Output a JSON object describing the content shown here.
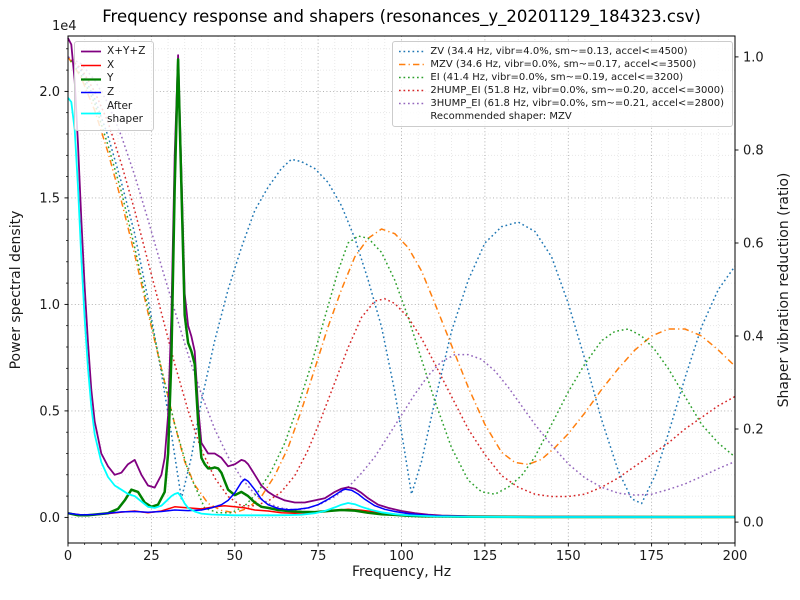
{
  "chart_data": {
    "type": "line",
    "title": "Frequency response and shapers (resonances_y_20201129_184323.csv)",
    "xlabel": "Frequency, Hz",
    "ylabel_left": "Power spectral density",
    "ylabel_right": "Shaper vibration reduction (ratio)",
    "offset_text": "1e4",
    "xlim": [
      0,
      200
    ],
    "ylim_left": [
      -0.12,
      2.26
    ],
    "ylim_right": [
      -0.045,
      1.045
    ],
    "x_ticks": [
      0,
      25,
      50,
      75,
      100,
      125,
      150,
      175,
      200
    ],
    "y_ticks_left": [
      0.0,
      0.5,
      1.0,
      1.5,
      2.0
    ],
    "y_ticks_right": [
      0.0,
      0.2,
      0.4,
      0.6,
      0.8,
      1.0
    ],
    "x_minor_step": 5,
    "y_left_minor_step": 0.1,
    "grid": {
      "major": true,
      "minor": true
    },
    "legend_left_position": "upper-left",
    "legend_right_position": "upper-right",
    "recommended": "Recommended shaper: MZV",
    "psd_units_multiplier": 10000,
    "psd_series": [
      {
        "name": "xyz",
        "label": "X+Y+Z",
        "color": "#800080",
        "dash": "solid",
        "width": 1.8,
        "x": [
          0,
          1,
          2,
          3,
          4,
          5,
          6,
          7,
          8,
          10,
          12,
          14,
          16,
          18,
          20,
          22,
          24,
          26,
          28,
          29,
          30,
          31,
          32,
          33,
          34,
          35,
          36,
          37,
          38,
          39,
          40,
          42,
          44,
          46,
          48,
          50,
          51,
          52,
          53,
          54,
          56,
          58,
          60,
          62,
          65,
          68,
          71,
          74,
          77,
          80,
          82,
          84,
          86,
          88,
          90,
          93,
          96,
          100,
          104,
          108,
          112,
          120,
          140,
          170,
          200
        ],
        "y": [
          2.25,
          2.22,
          2.05,
          1.75,
          1.4,
          1.08,
          0.82,
          0.6,
          0.45,
          0.3,
          0.24,
          0.2,
          0.21,
          0.25,
          0.27,
          0.2,
          0.15,
          0.14,
          0.2,
          0.28,
          0.48,
          0.95,
          1.7,
          2.17,
          1.62,
          1.05,
          0.9,
          0.85,
          0.78,
          0.52,
          0.35,
          0.3,
          0.3,
          0.28,
          0.24,
          0.25,
          0.26,
          0.27,
          0.265,
          0.25,
          0.2,
          0.15,
          0.12,
          0.1,
          0.08,
          0.07,
          0.07,
          0.08,
          0.09,
          0.12,
          0.135,
          0.142,
          0.135,
          0.115,
          0.09,
          0.06,
          0.045,
          0.03,
          0.02,
          0.013,
          0.009,
          0.006,
          0.004,
          0.003,
          0.002
        ]
      },
      {
        "name": "x",
        "label": "X",
        "color": "#ff0000",
        "dash": "solid",
        "width": 1.5,
        "x": [
          0,
          4,
          8,
          12,
          16,
          20,
          24,
          28,
          32,
          36,
          40,
          44,
          47,
          50,
          53,
          56,
          60,
          64,
          68,
          72,
          76,
          80,
          84,
          88,
          92,
          96,
          100,
          105,
          110,
          120,
          140,
          170,
          200
        ],
        "y": [
          0.02,
          0.012,
          0.012,
          0.018,
          0.025,
          0.03,
          0.022,
          0.03,
          0.05,
          0.045,
          0.04,
          0.05,
          0.055,
          0.05,
          0.045,
          0.035,
          0.03,
          0.022,
          0.02,
          0.022,
          0.026,
          0.032,
          0.038,
          0.034,
          0.026,
          0.018,
          0.013,
          0.009,
          0.006,
          0.004,
          0.003,
          0.002,
          0.002
        ]
      },
      {
        "name": "y",
        "label": "Y",
        "color": "#008000",
        "dash": "solid",
        "width": 2.5,
        "x": [
          0,
          3,
          6,
          9,
          12,
          15,
          17,
          19,
          21,
          23,
          25,
          27,
          29,
          30,
          31,
          32,
          33,
          34,
          35,
          36,
          37,
          38,
          39,
          40,
          41,
          42,
          43,
          44,
          45,
          46,
          47,
          48,
          50,
          52,
          54,
          56,
          58,
          60,
          63,
          66,
          70,
          74,
          78,
          82,
          86,
          90,
          94,
          98,
          102,
          106,
          110,
          120,
          140,
          170,
          200
        ],
        "y": [
          0.02,
          0.01,
          0.01,
          0.015,
          0.02,
          0.04,
          0.08,
          0.13,
          0.12,
          0.07,
          0.05,
          0.06,
          0.12,
          0.3,
          0.75,
          1.55,
          2.15,
          1.55,
          0.95,
          0.82,
          0.78,
          0.72,
          0.45,
          0.28,
          0.25,
          0.23,
          0.23,
          0.235,
          0.23,
          0.21,
          0.17,
          0.13,
          0.105,
          0.12,
          0.1,
          0.07,
          0.05,
          0.045,
          0.035,
          0.03,
          0.026,
          0.025,
          0.03,
          0.035,
          0.032,
          0.022,
          0.015,
          0.012,
          0.008,
          0.006,
          0.005,
          0.003,
          0.002,
          0.002,
          0.002
        ]
      },
      {
        "name": "z",
        "label": "Z",
        "color": "#0000ff",
        "dash": "solid",
        "width": 1.5,
        "x": [
          0,
          4,
          8,
          12,
          16,
          20,
          24,
          28,
          32,
          36,
          40,
          43,
          46,
          48,
          50,
          52,
          53,
          54,
          56,
          58,
          60,
          63,
          66,
          69,
          72,
          75,
          78,
          80,
          82,
          83,
          85,
          87,
          89,
          92,
          95,
          98,
          102,
          106,
          110,
          120,
          140,
          170,
          200
        ],
        "y": [
          0.02,
          0.012,
          0.014,
          0.02,
          0.026,
          0.028,
          0.024,
          0.028,
          0.035,
          0.032,
          0.035,
          0.045,
          0.06,
          0.08,
          0.115,
          0.165,
          0.18,
          0.17,
          0.13,
          0.085,
          0.06,
          0.042,
          0.036,
          0.038,
          0.045,
          0.06,
          0.085,
          0.105,
          0.125,
          0.133,
          0.128,
          0.11,
          0.085,
          0.055,
          0.038,
          0.028,
          0.018,
          0.012,
          0.008,
          0.004,
          0.003,
          0.002,
          0.002
        ]
      },
      {
        "name": "after_shaper",
        "label": "After\nshaper",
        "color": "#00ffff",
        "dash": "solid",
        "width": 1.8,
        "x": [
          0,
          1,
          2,
          3,
          4,
          5,
          6,
          7,
          8,
          10,
          12,
          14,
          16,
          18,
          20,
          22,
          24,
          26,
          28,
          30,
          31,
          32,
          33,
          34,
          35,
          36,
          38,
          40,
          43,
          46,
          50,
          54,
          58,
          62,
          66,
          70,
          74,
          77,
          80,
          82,
          84,
          86,
          88,
          91,
          94,
          98,
          102,
          106,
          110,
          120,
          140,
          170,
          200
        ],
        "y": [
          1.97,
          1.95,
          1.82,
          1.55,
          1.22,
          0.93,
          0.7,
          0.52,
          0.39,
          0.26,
          0.19,
          0.15,
          0.13,
          0.11,
          0.1,
          0.075,
          0.05,
          0.045,
          0.055,
          0.085,
          0.1,
          0.11,
          0.115,
          0.095,
          0.065,
          0.045,
          0.028,
          0.018,
          0.014,
          0.012,
          0.01,
          0.01,
          0.01,
          0.01,
          0.011,
          0.013,
          0.02,
          0.03,
          0.047,
          0.06,
          0.068,
          0.062,
          0.05,
          0.035,
          0.024,
          0.015,
          0.01,
          0.007,
          0.005,
          0.003,
          0.002,
          0.002,
          0.002
        ]
      }
    ],
    "shaper_series": [
      {
        "name": "zv",
        "label": "ZV (34.4 Hz, vibr=4.0%, sm~=0.13, accel<=4500)",
        "color": "#1f77b4",
        "dash": "dotted",
        "x": [
          0,
          4,
          8,
          12,
          16,
          20,
          24,
          28,
          31,
          34,
          37,
          40,
          44,
          48,
          52,
          56,
          60,
          64,
          67,
          70,
          74,
          78,
          82,
          86,
          90,
          94,
          98,
          101,
          103,
          106,
          110,
          115,
          120,
          125,
          130,
          135,
          140,
          145,
          150,
          155,
          160,
          165,
          169,
          172,
          176,
          180,
          185,
          190,
          195,
          200
        ],
        "y": [
          1.0,
          0.97,
          0.91,
          0.83,
          0.73,
          0.62,
          0.48,
          0.32,
          0.19,
          0.05,
          0.14,
          0.26,
          0.39,
          0.5,
          0.59,
          0.67,
          0.72,
          0.76,
          0.78,
          0.775,
          0.76,
          0.73,
          0.68,
          0.61,
          0.52,
          0.42,
          0.28,
          0.15,
          0.06,
          0.13,
          0.26,
          0.41,
          0.52,
          0.6,
          0.635,
          0.645,
          0.625,
          0.57,
          0.47,
          0.35,
          0.22,
          0.11,
          0.05,
          0.04,
          0.1,
          0.19,
          0.31,
          0.42,
          0.5,
          0.55
        ]
      },
      {
        "name": "mzv",
        "label": "MZV (34.6 Hz, vibr=0.0%, sm~=0.17, accel<=3500)",
        "color": "#ff7f0e",
        "dash": "dashdot",
        "x": [
          0,
          4,
          8,
          12,
          16,
          20,
          24,
          28,
          32,
          35,
          38,
          42,
          46,
          50,
          54,
          58,
          62,
          66,
          70,
          74,
          78,
          82,
          86,
          90,
          94,
          98,
          102,
          106,
          110,
          115,
          120,
          125,
          130,
          134,
          138,
          142,
          146,
          150,
          155,
          160,
          165,
          170,
          175,
          180,
          185,
          190,
          195,
          200
        ],
        "y": [
          1.0,
          0.955,
          0.885,
          0.795,
          0.69,
          0.575,
          0.45,
          0.33,
          0.21,
          0.13,
          0.08,
          0.04,
          0.025,
          0.02,
          0.03,
          0.055,
          0.1,
          0.16,
          0.24,
          0.33,
          0.42,
          0.5,
          0.57,
          0.61,
          0.63,
          0.62,
          0.59,
          0.54,
          0.47,
          0.38,
          0.29,
          0.21,
          0.15,
          0.128,
          0.124,
          0.135,
          0.16,
          0.19,
          0.235,
          0.285,
          0.33,
          0.37,
          0.4,
          0.415,
          0.415,
          0.4,
          0.37,
          0.335
        ]
      },
      {
        "name": "ei",
        "label": "EI (41.4 Hz, vibr=0.0%, sm~=0.19, accel<=3200)",
        "color": "#2ca02c",
        "dash": "dotted",
        "x": [
          0,
          4,
          8,
          12,
          16,
          20,
          24,
          28,
          32,
          36,
          41,
          45,
          49,
          53,
          57,
          61,
          65,
          69,
          73,
          77,
          81,
          84,
          87,
          90,
          94,
          98,
          102,
          106,
          110,
          115,
          120,
          124,
          128,
          132,
          136,
          140,
          145,
          150,
          155,
          160,
          164,
          168,
          172,
          176,
          180,
          185,
          190,
          195,
          200
        ],
        "y": [
          1.0,
          0.96,
          0.9,
          0.81,
          0.71,
          0.59,
          0.46,
          0.33,
          0.21,
          0.11,
          0.03,
          0.02,
          0.02,
          0.035,
          0.065,
          0.11,
          0.17,
          0.25,
          0.34,
          0.44,
          0.54,
          0.6,
          0.615,
          0.61,
          0.58,
          0.52,
          0.44,
          0.35,
          0.26,
          0.16,
          0.09,
          0.065,
          0.06,
          0.075,
          0.1,
          0.14,
          0.21,
          0.28,
          0.34,
          0.39,
          0.41,
          0.415,
          0.4,
          0.37,
          0.33,
          0.27,
          0.21,
          0.17,
          0.14
        ]
      },
      {
        "name": "2hump_ei",
        "label": "2HUMP_EI (51.8 Hz, vibr=0.0%, sm~=0.20, accel<=3000)",
        "color": "#d62728",
        "dash": "dotted",
        "x": [
          0,
          4,
          8,
          12,
          16,
          20,
          24,
          28,
          32,
          36,
          40,
          44,
          48,
          52,
          56,
          60,
          64,
          68,
          72,
          76,
          80,
          84,
          88,
          92,
          95,
          98,
          102,
          106,
          110,
          115,
          120,
          125,
          130,
          135,
          140,
          145,
          150,
          155,
          160,
          165,
          170,
          175,
          180,
          185,
          190,
          195,
          200
        ],
        "y": [
          1.0,
          0.975,
          0.925,
          0.86,
          0.77,
          0.67,
          0.56,
          0.45,
          0.34,
          0.24,
          0.155,
          0.095,
          0.055,
          0.035,
          0.035,
          0.045,
          0.065,
          0.1,
          0.155,
          0.225,
          0.3,
          0.375,
          0.44,
          0.475,
          0.48,
          0.47,
          0.44,
          0.395,
          0.34,
          0.27,
          0.2,
          0.145,
          0.1,
          0.075,
          0.06,
          0.055,
          0.055,
          0.06,
          0.075,
          0.095,
          0.12,
          0.145,
          0.17,
          0.2,
          0.225,
          0.25,
          0.27
        ]
      },
      {
        "name": "3hump_ei",
        "label": "3HUMP_EI (61.8 Hz, vibr=0.0%, sm~=0.21, accel<=2800)",
        "color": "#9467bd",
        "dash": "dotted",
        "x": [
          0,
          4,
          8,
          12,
          16,
          20,
          24,
          28,
          32,
          36,
          40,
          44,
          48,
          52,
          56,
          60,
          64,
          68,
          72,
          76,
          80,
          84,
          88,
          92,
          96,
          100,
          104,
          108,
          112,
          116,
          120,
          124,
          128,
          132,
          136,
          140,
          145,
          150,
          155,
          160,
          165,
          170,
          175,
          180,
          185,
          190,
          195,
          200
        ],
        "y": [
          1.0,
          0.985,
          0.95,
          0.9,
          0.83,
          0.745,
          0.65,
          0.55,
          0.455,
          0.36,
          0.275,
          0.2,
          0.14,
          0.095,
          0.06,
          0.04,
          0.03,
          0.026,
          0.03,
          0.04,
          0.055,
          0.075,
          0.105,
          0.14,
          0.185,
          0.23,
          0.275,
          0.315,
          0.345,
          0.36,
          0.36,
          0.35,
          0.325,
          0.29,
          0.25,
          0.21,
          0.165,
          0.125,
          0.095,
          0.075,
          0.062,
          0.058,
          0.06,
          0.07,
          0.082,
          0.098,
          0.115,
          0.13
        ]
      }
    ]
  }
}
